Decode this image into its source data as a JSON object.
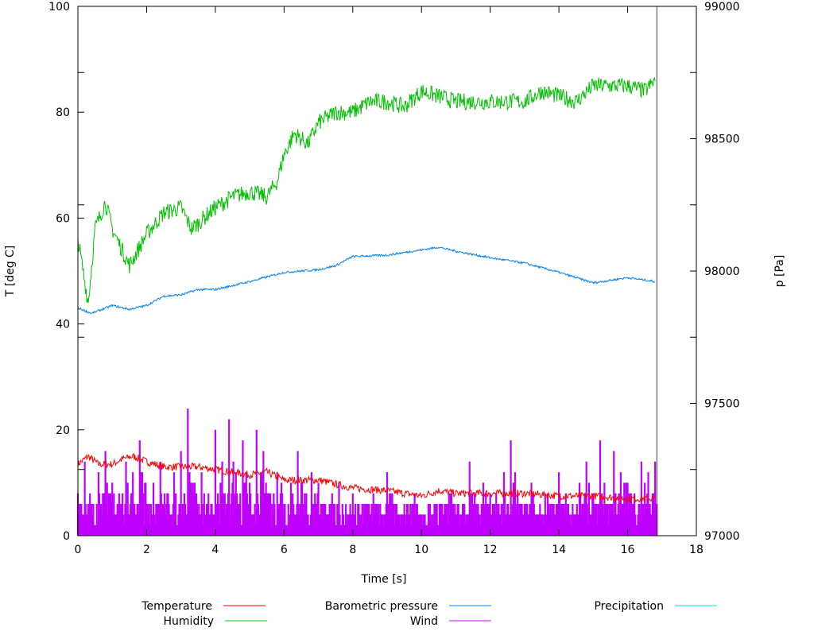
{
  "chart_data": {
    "type": "line",
    "xlabel": "Time [s]",
    "ylabel": "T [deg C]",
    "y2label": "p [Pa]",
    "xlim": [
      0,
      18
    ],
    "ylim": [
      0,
      100
    ],
    "y2lim": [
      97000,
      99000
    ],
    "xticks": [
      "0",
      "2",
      "4",
      "6",
      "8",
      "10",
      "12",
      "14",
      "16",
      "18"
    ],
    "yticks": [
      "0",
      "20",
      "40",
      "60",
      "80",
      "100"
    ],
    "y2ticks": [
      "97000",
      "97500",
      "98000",
      "98500",
      "99000"
    ],
    "grid": false,
    "legend_position": "bottom",
    "series": [
      {
        "name": "Temperature",
        "axis": "y",
        "color": "#ff0000",
        "style": "line",
        "points": [
          [
            0,
            13.5
          ],
          [
            0.3,
            15
          ],
          [
            0.6,
            13.5
          ],
          [
            1,
            13.5
          ],
          [
            1.3,
            14.5
          ],
          [
            1.6,
            15
          ],
          [
            2,
            14
          ],
          [
            2.5,
            13
          ],
          [
            3,
            13
          ],
          [
            3.5,
            13
          ],
          [
            4,
            12.5
          ],
          [
            5,
            11.5
          ],
          [
            5.5,
            12
          ],
          [
            6,
            10.5
          ],
          [
            7,
            10.5
          ],
          [
            8,
            9
          ],
          [
            9,
            8.5
          ],
          [
            10,
            7.5
          ],
          [
            10.5,
            8.5
          ],
          [
            11,
            8
          ],
          [
            12,
            8
          ],
          [
            13,
            8
          ],
          [
            14,
            7.5
          ],
          [
            15,
            7.5
          ],
          [
            16,
            7
          ],
          [
            16.8,
            7
          ]
        ]
      },
      {
        "name": "Humidity",
        "axis": "y",
        "color": "#00c000",
        "style": "line",
        "points": [
          [
            0,
            56
          ],
          [
            0.3,
            44
          ],
          [
            0.5,
            58
          ],
          [
            0.8,
            63
          ],
          [
            1.0,
            58
          ],
          [
            1.5,
            51
          ],
          [
            2,
            57
          ],
          [
            2.5,
            61
          ],
          [
            3,
            62
          ],
          [
            3.3,
            58
          ],
          [
            3.5,
            59
          ],
          [
            4,
            62
          ],
          [
            4.5,
            64
          ],
          [
            5,
            65
          ],
          [
            5.5,
            64
          ],
          [
            5.8,
            67
          ],
          [
            6,
            72
          ],
          [
            6.3,
            76
          ],
          [
            6.7,
            74
          ],
          [
            7,
            78
          ],
          [
            7.5,
            80
          ],
          [
            8,
            80
          ],
          [
            8.5,
            82
          ],
          [
            9,
            82
          ],
          [
            9.5,
            81
          ],
          [
            10,
            84
          ],
          [
            10.5,
            83
          ],
          [
            11,
            82
          ],
          [
            12,
            82
          ],
          [
            13,
            82
          ],
          [
            13.5,
            84
          ],
          [
            14,
            83
          ],
          [
            14.5,
            82
          ],
          [
            15,
            85
          ],
          [
            16,
            85
          ],
          [
            16.5,
            84
          ],
          [
            16.8,
            86
          ]
        ]
      },
      {
        "name": "Barometric pressure",
        "axis": "y2",
        "color": "#0080ff",
        "style": "line",
        "points": [
          [
            0,
            97860
          ],
          [
            0.4,
            97840
          ],
          [
            1,
            97870
          ],
          [
            1.5,
            97855
          ],
          [
            2,
            97870
          ],
          [
            2.5,
            97905
          ],
          [
            3,
            97910
          ],
          [
            3.5,
            97930
          ],
          [
            4,
            97930
          ],
          [
            5,
            97960
          ],
          [
            6,
            97995
          ],
          [
            7,
            98005
          ],
          [
            7.5,
            98020
          ],
          [
            8,
            98055
          ],
          [
            9,
            98060
          ],
          [
            10,
            98080
          ],
          [
            10.5,
            98090
          ],
          [
            11,
            98075
          ],
          [
            12,
            98050
          ],
          [
            13,
            98030
          ],
          [
            14,
            97995
          ],
          [
            15,
            97955
          ],
          [
            16,
            97975
          ],
          [
            16.8,
            97960
          ]
        ]
      },
      {
        "name": "Wind",
        "axis": "y",
        "color": "#c000ff",
        "style": "impulses",
        "dt": 0.2,
        "values": [
          8,
          14,
          6,
          12,
          16,
          10,
          8,
          14,
          12,
          18,
          6,
          10,
          14,
          8,
          12,
          16,
          24,
          10,
          12,
          8,
          20,
          14,
          22,
          12,
          18,
          10,
          20,
          16,
          8,
          12,
          6,
          10,
          16,
          8,
          12,
          10,
          6,
          8,
          10,
          6,
          8,
          4,
          6,
          8,
          6,
          12,
          6,
          4,
          6,
          8,
          4,
          6,
          4,
          6,
          8,
          4,
          6,
          14,
          6,
          10,
          8,
          6,
          12,
          18,
          8,
          6,
          10,
          4,
          8,
          6,
          12,
          8,
          6,
          10,
          14,
          8,
          18,
          6,
          16,
          12,
          10,
          8,
          14,
          12,
          14
        ]
      },
      {
        "name": "Precipitation",
        "axis": "y",
        "color": "#00e0e0",
        "style": "line",
        "points": []
      }
    ],
    "end_marker_time": 16.85
  }
}
